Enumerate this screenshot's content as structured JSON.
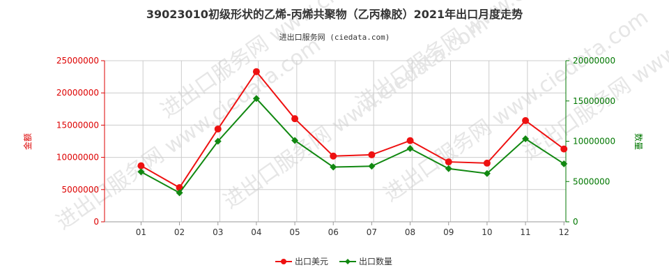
{
  "chart_data": {
    "type": "line",
    "title": "39023010初级形状的乙烯-丙烯共聚物（乙丙橡胶）2021年出口月度走势",
    "subtitle": "进出口服务网 (ciedata.com)",
    "watermark": "进出口服务网 www.ciedata.com",
    "categories": [
      "01",
      "02",
      "03",
      "04",
      "05",
      "06",
      "07",
      "08",
      "09",
      "10",
      "11",
      "12"
    ],
    "y_left": {
      "label": "金额",
      "min": 0,
      "max": 25000000,
      "ticks": [
        0,
        5000000,
        10000000,
        15000000,
        20000000,
        25000000
      ],
      "color": "#dd0000"
    },
    "y_right": {
      "label": "数量",
      "min": 0,
      "max": 20000000,
      "ticks": [
        0,
        5000000,
        10000000,
        15000000,
        20000000
      ],
      "color": "#007700"
    },
    "series": [
      {
        "name": "出口美元",
        "axis": "left",
        "color": "#ee1111",
        "marker": "circle",
        "values": [
          8700000,
          5300000,
          14400000,
          23300000,
          16000000,
          10200000,
          10400000,
          12600000,
          9300000,
          9100000,
          15700000,
          11300000
        ]
      },
      {
        "name": "出口数量",
        "axis": "right",
        "color": "#118811",
        "marker": "diamond",
        "values": [
          6200000,
          3600000,
          10000000,
          15300000,
          10100000,
          6800000,
          6900000,
          9100000,
          6600000,
          6000000,
          10300000,
          7200000
        ]
      }
    ],
    "grid": true,
    "legend_position": "bottom-center"
  }
}
